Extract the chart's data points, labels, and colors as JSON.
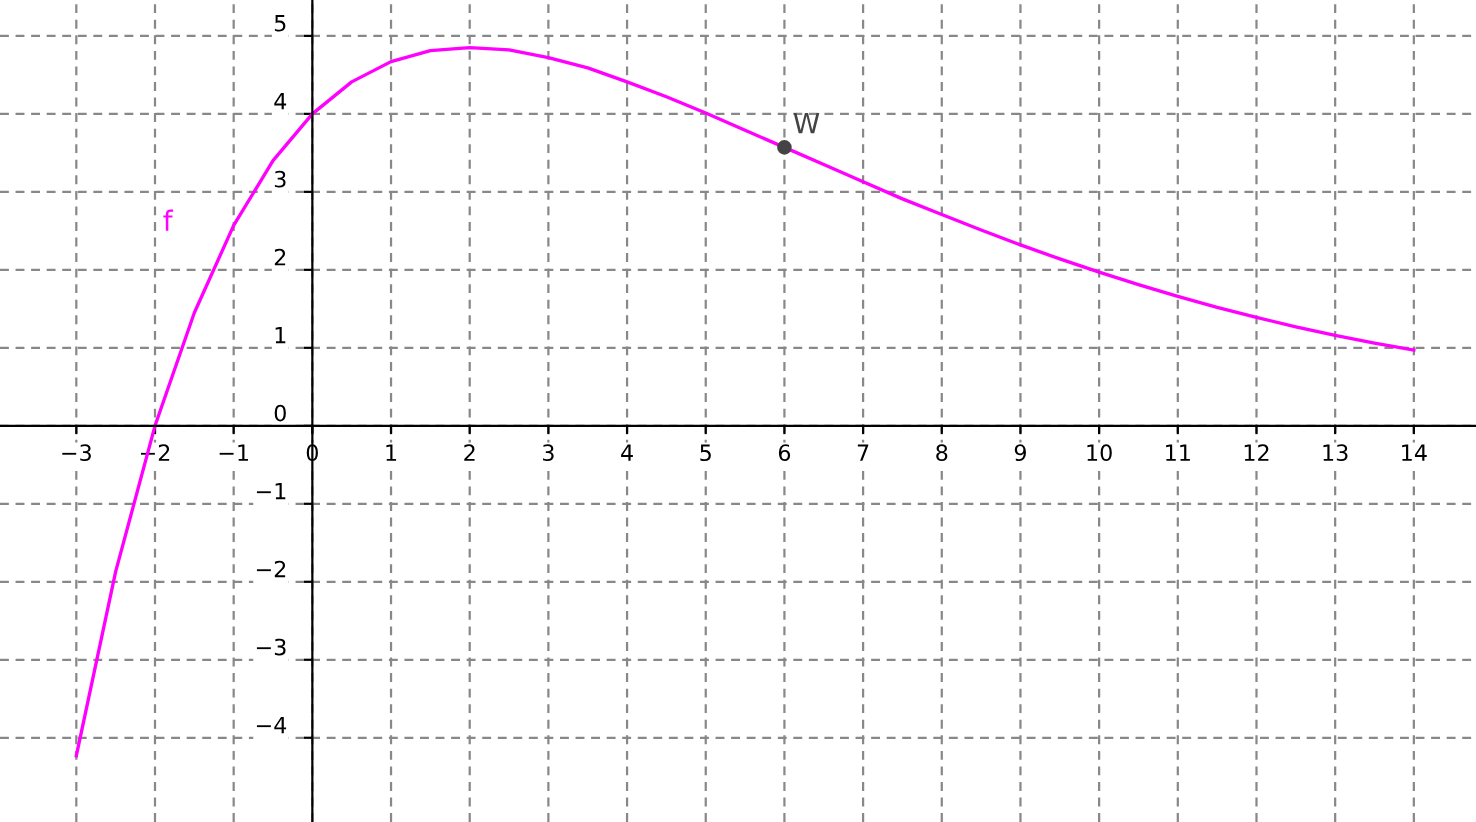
{
  "chart_data": {
    "type": "line",
    "x": [
      -3,
      -2.5,
      -2,
      -1.5,
      -1,
      -0.5,
      0,
      0.5,
      1,
      1.5,
      2,
      2.5,
      3,
      3.5,
      4,
      4.5,
      5,
      5.5,
      6,
      6.5,
      7,
      7.5,
      8,
      8.5,
      9,
      9.5,
      10,
      10.5,
      11,
      11.5,
      12,
      12.5,
      13,
      13.5,
      14
    ],
    "series": [
      {
        "name": "f",
        "color": "#ff00ff",
        "values": [
          -4.23,
          -1.87,
          0,
          1.45,
          2.57,
          3.4,
          4,
          4.41,
          4.67,
          4.81,
          4.85,
          4.82,
          4.72,
          4.59,
          4.41,
          4.22,
          4.01,
          3.79,
          3.57,
          3.35,
          3.13,
          2.91,
          2.71,
          2.51,
          2.32,
          2.14,
          1.97,
          1.81,
          1.66,
          1.52,
          1.39,
          1.27,
          1.16,
          1.06,
          0.97
        ]
      },
      {
        "type": "scatter",
        "marker": "circle",
        "color": "#444444",
        "x": [
          6
        ],
        "values": [
          3.57
        ]
      }
    ],
    "annotations": [
      {
        "text": "W",
        "x": 6,
        "y": 3.57
      }
    ],
    "xlim": [
      -3.97,
      14.79
    ],
    "ylim": [
      -5.08,
      5.46
    ],
    "xticks": [
      -3,
      -2,
      -1,
      0,
      1,
      2,
      3,
      4,
      5,
      6,
      7,
      8,
      9,
      10,
      11,
      12,
      13,
      14
    ],
    "yticks": [
      -4,
      -3,
      -2,
      -1,
      0,
      1,
      2,
      3,
      4,
      5
    ],
    "grid": true,
    "line_style": "solid"
  }
}
